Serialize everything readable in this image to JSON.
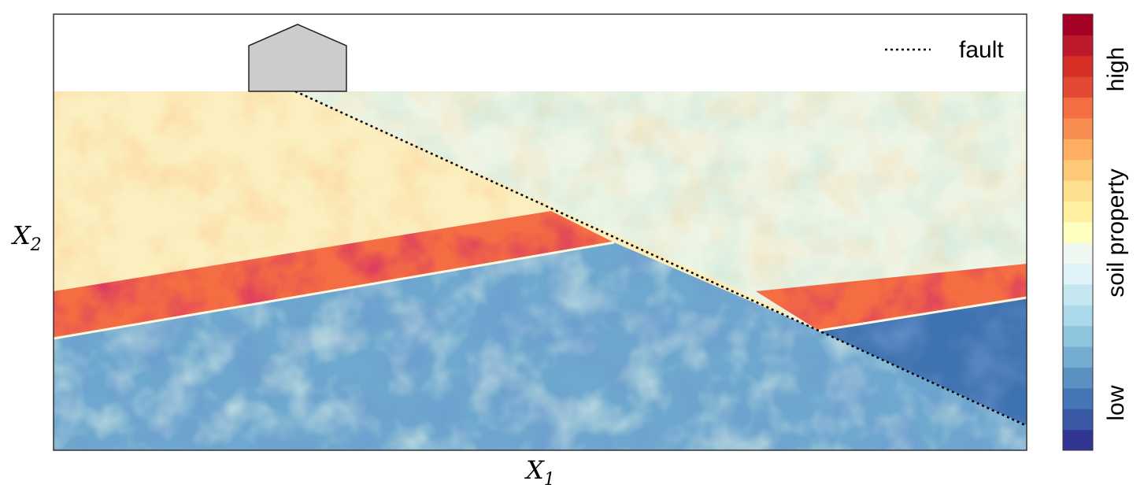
{
  "figure": {
    "xlabel": {
      "main": "X",
      "sub": "1"
    },
    "ylabel": {
      "main": "X",
      "sub": "2"
    },
    "legend": {
      "label": "fault",
      "line_style": "dotted"
    },
    "colorbar": {
      "label_high": "high",
      "label_mid": "soil property",
      "label_low": "low",
      "palette": [
        "#313695",
        "#3a5aa5",
        "#4575b4",
        "#5b90c3",
        "#74add1",
        "#8fc4dd",
        "#abd9e9",
        "#c5e7ef",
        "#e0f3f8",
        "#eef8f0",
        "#ffffbf",
        "#fff0a0",
        "#fee090",
        "#fdc878",
        "#fdae61",
        "#f88d52",
        "#f46d43",
        "#e34a33",
        "#d73027",
        "#bd1a2b",
        "#a50026"
      ]
    },
    "structure_icon": "house-shape",
    "colors": {
      "building_fill": "#cccccc",
      "low": "#313695",
      "mid": "#ffffbf",
      "high": "#a50026"
    }
  }
}
